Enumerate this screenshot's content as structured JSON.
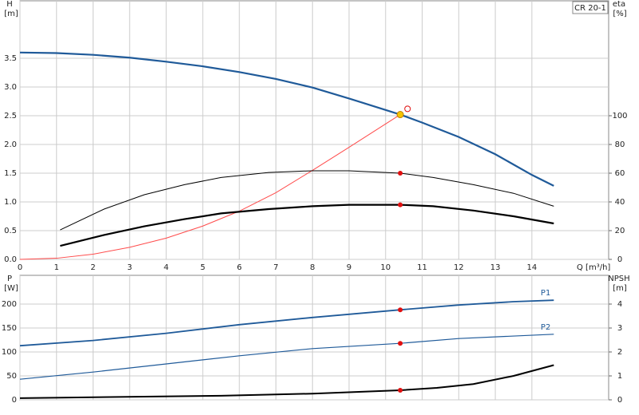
{
  "chart_data": [
    {
      "type": "line",
      "product": "CR 20-1",
      "xlabel": "Q [m³/h]",
      "ylabel": "H",
      "yunit": "[m]",
      "y2label": "eta",
      "y2unit": "[%]",
      "xlim": [
        0,
        16.1
      ],
      "xticks": [
        0,
        1,
        2,
        3,
        4,
        5,
        6,
        7,
        8,
        9,
        10,
        11,
        12,
        13,
        14
      ],
      "ylim": [
        0,
        4.5
      ],
      "yticks": [
        {
          "value": 0,
          "label": "0.0"
        },
        0.5,
        {
          "value": 1,
          "label": "1.0"
        },
        1.5,
        {
          "value": 2,
          "label": "2.0"
        },
        2.5,
        {
          "value": 3,
          "label": "3.0"
        },
        3.5
      ],
      "y2lim": [
        0,
        180
      ],
      "y2ticks": [
        0,
        20,
        40,
        60,
        80,
        100
      ],
      "grid": true,
      "series": [
        {
          "color": "#1f5a99",
          "width": 2.2,
          "x": [
            0,
            1,
            2,
            3,
            4,
            5,
            6,
            7,
            8,
            9,
            10.4,
            11,
            12,
            13,
            14,
            14.6
          ],
          "values": [
            3.6,
            3.59,
            3.56,
            3.51,
            3.44,
            3.36,
            3.26,
            3.14,
            2.99,
            2.8,
            2.52,
            2.38,
            2.13,
            1.83,
            1.47,
            1.28
          ]
        },
        {
          "color": "#ff4b4b",
          "width": 1,
          "x": [
            0,
            1,
            2,
            3,
            4,
            5,
            6,
            7,
            8,
            9,
            10.4
          ],
          "values": [
            0,
            0.02,
            0.09,
            0.21,
            0.37,
            0.58,
            0.84,
            1.16,
            1.55,
            1.95,
            2.52
          ]
        },
        {
          "color": "#000000",
          "width": 1,
          "axis": "y2",
          "x": [
            1.1,
            2.3,
            3.4,
            4.5,
            5.5,
            6.8,
            8,
            9,
            10.4,
            11.3,
            12.4,
            13.5,
            14.6
          ],
          "values": [
            20.5,
            35,
            45,
            52,
            57,
            60.5,
            61.7,
            61.7,
            60,
            57,
            52,
            46,
            37
          ],
          "marker": {
            "index": 8,
            "color": "#e01010"
          }
        },
        {
          "color": "#000000",
          "width": 2.2,
          "axis": "y2",
          "x": [
            1.1,
            2.3,
            3.4,
            4.5,
            5.5,
            6.8,
            8,
            9,
            10.4,
            11.3,
            12.4,
            13.5,
            14.6
          ],
          "values": [
            9.4,
            17,
            23,
            28,
            32,
            35,
            37,
            38,
            38,
            37,
            34,
            30,
            25
          ],
          "marker": {
            "index": 8,
            "color": "#e01010"
          }
        }
      ],
      "duty_point": {
        "x": 10.4,
        "y": 2.52,
        "color": "#f5c400"
      },
      "requested_point": {
        "x": 10.6,
        "y": 2.62,
        "color": "#e01010"
      }
    },
    {
      "type": "line",
      "ylabel": "P",
      "yunit": "[W]",
      "y2label": "NPSH",
      "y2unit": "[m]",
      "xlim": [
        0,
        16.1
      ],
      "xticks": [
        0,
        1,
        2,
        3,
        4,
        5,
        6,
        7,
        8,
        9,
        10,
        11,
        12,
        13,
        14
      ],
      "ylim": [
        0,
        260
      ],
      "yticks": [
        0,
        50,
        100,
        150,
        200
      ],
      "y2lim": [
        0,
        5.2
      ],
      "y2ticks": [
        0,
        1,
        2,
        3,
        4
      ],
      "grid": true,
      "series": [
        {
          "name": "P1",
          "color": "#1f5a99",
          "width": 1.8,
          "x": [
            0,
            2,
            4,
            6,
            8,
            10.4,
            12,
            13.5,
            14.6
          ],
          "values": [
            113,
            124,
            139,
            157,
            172,
            188,
            198,
            205,
            208
          ],
          "marker": {
            "index": 5,
            "color": "#e01010"
          }
        },
        {
          "name": "P2",
          "color": "#1f5a99",
          "width": 1.2,
          "x": [
            0,
            2,
            4,
            6,
            8,
            10.4,
            12,
            14.6
          ],
          "values": [
            43,
            58,
            75,
            92,
            107,
            118,
            128,
            137
          ],
          "marker": {
            "index": 5,
            "color": "#e01010"
          }
        },
        {
          "color": "#000000",
          "width": 2,
          "axis": "y2",
          "x": [
            0,
            5.5,
            8,
            10.4,
            11.4,
            12.4,
            13.5,
            14.6
          ],
          "values": [
            0.07,
            0.17,
            0.26,
            0.4,
            0.5,
            0.66,
            1.0,
            1.45
          ],
          "marker": {
            "index": 3,
            "color": "#e01010"
          }
        }
      ]
    }
  ]
}
